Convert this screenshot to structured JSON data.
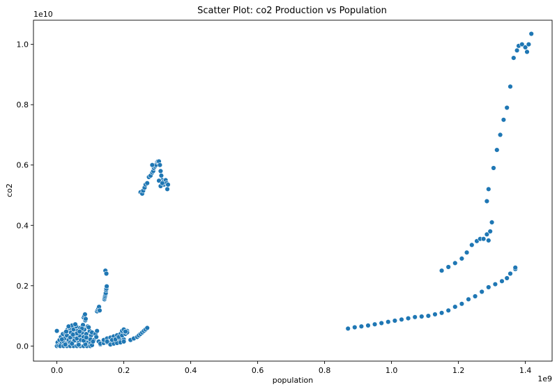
{
  "chart_data": {
    "type": "scatter",
    "title": "Scatter Plot: co2 Production vs Population",
    "xlabel": "population",
    "ylabel": "co2",
    "x_offset_label": "1e9",
    "y_offset_label": "1e10",
    "xlim": [
      -0.07,
      1.48
    ],
    "ylim": [
      -0.05,
      1.08
    ],
    "x_ticks": [
      {
        "value": 0.0,
        "label": "0.0"
      },
      {
        "value": 0.2,
        "label": "0.2"
      },
      {
        "value": 0.4,
        "label": "0.4"
      },
      {
        "value": 0.6,
        "label": "0.6"
      },
      {
        "value": 0.8,
        "label": "0.8"
      },
      {
        "value": 1.0,
        "label": "1.0"
      },
      {
        "value": 1.2,
        "label": "1.2"
      },
      {
        "value": 1.4,
        "label": "1.4"
      }
    ],
    "y_ticks": [
      {
        "value": 0.0,
        "label": "0.0"
      },
      {
        "value": 0.2,
        "label": "0.2"
      },
      {
        "value": 0.4,
        "label": "0.4"
      },
      {
        "value": 0.6,
        "label": "0.6"
      },
      {
        "value": 0.8,
        "label": "0.8"
      },
      {
        "value": 1.0,
        "label": "1.0"
      }
    ],
    "grid": false,
    "legend": "none",
    "marker_color": "#1f77b4",
    "marker_edge_color": "#ffffff",
    "series": [
      {
        "points": [
          [
            0.0,
            0.0
          ],
          [
            0.0,
            0.05
          ],
          [
            0.002,
            0.012
          ],
          [
            0.005,
            0.002
          ],
          [
            0.008,
            0.02
          ],
          [
            0.01,
            0.005
          ],
          [
            0.012,
            0.03
          ],
          [
            0.015,
            0.01
          ],
          [
            0.018,
            0.04
          ],
          [
            0.02,
            0.015
          ],
          [
            0.022,
            0.025
          ],
          [
            0.025,
            0.045
          ],
          [
            0.028,
            0.008
          ],
          [
            0.03,
            0.035
          ],
          [
            0.032,
            0.055
          ],
          [
            0.035,
            0.02
          ],
          [
            0.038,
            0.06
          ],
          [
            0.04,
            0.012
          ],
          [
            0.042,
            0.045
          ],
          [
            0.045,
            0.068
          ],
          [
            0.048,
            0.03
          ],
          [
            0.05,
            0.055
          ],
          [
            0.052,
            0.018
          ],
          [
            0.055,
            0.04
          ],
          [
            0.058,
            0.065
          ],
          [
            0.06,
            0.025
          ],
          [
            0.062,
            0.05
          ],
          [
            0.065,
            0.01
          ],
          [
            0.068,
            0.035
          ],
          [
            0.07,
            0.06
          ],
          [
            0.072,
            0.02
          ],
          [
            0.075,
            0.045
          ],
          [
            0.078,
            0.07
          ],
          [
            0.08,
            0.03
          ],
          [
            0.082,
            0.055
          ],
          [
            0.085,
            0.085
          ],
          [
            0.088,
            0.04
          ],
          [
            0.09,
            0.012
          ],
          [
            0.092,
            0.065
          ],
          [
            0.095,
            0.025
          ],
          [
            0.098,
            0.05
          ],
          [
            0.1,
            0.008
          ],
          [
            0.102,
            0.035
          ],
          [
            0.105,
            0.045
          ],
          [
            0.11,
            0.02
          ],
          [
            0.115,
            0.04
          ],
          [
            0.12,
            0.05
          ],
          [
            0.125,
            0.015
          ],
          [
            0.13,
            0.005
          ],
          [
            0.135,
            0.01
          ],
          [
            0.01,
            0.0
          ],
          [
            0.02,
            0.0
          ],
          [
            0.03,
            0.0
          ],
          [
            0.04,
            0.0
          ],
          [
            0.05,
            0.0
          ],
          [
            0.06,
            0.0
          ],
          [
            0.07,
            0.0
          ],
          [
            0.08,
            0.0
          ],
          [
            0.09,
            0.0
          ],
          [
            0.1,
            0.0
          ],
          [
            0.025,
            0.005
          ],
          [
            0.045,
            0.008
          ],
          [
            0.065,
            0.004
          ],
          [
            0.085,
            0.006
          ],
          [
            0.105,
            0.003
          ],
          [
            0.035,
            0.065
          ],
          [
            0.055,
            0.072
          ],
          [
            0.075,
            0.058
          ],
          [
            0.095,
            0.062
          ],
          [
            0.04,
            0.028
          ],
          [
            0.06,
            0.042
          ],
          [
            0.08,
            0.018
          ],
          [
            0.1,
            0.022
          ],
          [
            0.015,
            0.022
          ],
          [
            0.028,
            0.048
          ],
          [
            0.048,
            0.038
          ],
          [
            0.068,
            0.048
          ],
          [
            0.088,
            0.028
          ],
          [
            0.108,
            0.015
          ],
          [
            0.118,
            0.03
          ],
          [
            0.08,
            0.095
          ],
          [
            0.082,
            0.1
          ],
          [
            0.084,
            0.105
          ],
          [
            0.086,
            0.09
          ],
          [
            0.12,
            0.115
          ],
          [
            0.122,
            0.12
          ],
          [
            0.124,
            0.125
          ],
          [
            0.126,
            0.13
          ],
          [
            0.128,
            0.118
          ],
          [
            0.142,
            0.155
          ],
          [
            0.143,
            0.16
          ],
          [
            0.144,
            0.165
          ],
          [
            0.145,
            0.17
          ],
          [
            0.146,
            0.175
          ],
          [
            0.147,
            0.185
          ],
          [
            0.148,
            0.19
          ],
          [
            0.149,
            0.198
          ],
          [
            0.145,
            0.25
          ],
          [
            0.148,
            0.24
          ],
          [
            0.13,
            0.008
          ],
          [
            0.14,
            0.01
          ],
          [
            0.15,
            0.012
          ],
          [
            0.16,
            0.014
          ],
          [
            0.17,
            0.016
          ],
          [
            0.18,
            0.018
          ],
          [
            0.19,
            0.02
          ],
          [
            0.2,
            0.022
          ],
          [
            0.14,
            0.02
          ],
          [
            0.15,
            0.025
          ],
          [
            0.16,
            0.028
          ],
          [
            0.17,
            0.032
          ],
          [
            0.18,
            0.036
          ],
          [
            0.19,
            0.04
          ],
          [
            0.2,
            0.045
          ],
          [
            0.21,
            0.05
          ],
          [
            0.16,
            0.005
          ],
          [
            0.17,
            0.008
          ],
          [
            0.18,
            0.01
          ],
          [
            0.19,
            0.012
          ],
          [
            0.2,
            0.015
          ],
          [
            0.22,
            0.02
          ],
          [
            0.23,
            0.025
          ],
          [
            0.24,
            0.03
          ],
          [
            0.245,
            0.035
          ],
          [
            0.25,
            0.04
          ],
          [
            0.255,
            0.045
          ],
          [
            0.26,
            0.05
          ],
          [
            0.265,
            0.055
          ],
          [
            0.27,
            0.06
          ],
          [
            0.15,
            0.015
          ],
          [
            0.165,
            0.02
          ],
          [
            0.175,
            0.022
          ],
          [
            0.185,
            0.03
          ],
          [
            0.195,
            0.035
          ],
          [
            0.205,
            0.04
          ],
          [
            0.21,
            0.045
          ],
          [
            0.195,
            0.05
          ],
          [
            0.2,
            0.055
          ],
          [
            0.205,
            0.048
          ],
          [
            0.25,
            0.51
          ],
          [
            0.255,
            0.505
          ],
          [
            0.258,
            0.515
          ],
          [
            0.262,
            0.525
          ],
          [
            0.265,
            0.535
          ],
          [
            0.27,
            0.54
          ],
          [
            0.275,
            0.56
          ],
          [
            0.28,
            0.565
          ],
          [
            0.285,
            0.575
          ],
          [
            0.288,
            0.58
          ],
          [
            0.29,
            0.59
          ],
          [
            0.293,
            0.595
          ],
          [
            0.296,
            0.6
          ],
          [
            0.3,
            0.61
          ],
          [
            0.302,
            0.612
          ],
          [
            0.305,
            0.612
          ],
          [
            0.308,
            0.6
          ],
          [
            0.31,
            0.58
          ],
          [
            0.312,
            0.565
          ],
          [
            0.315,
            0.55
          ],
          [
            0.318,
            0.545
          ],
          [
            0.32,
            0.535
          ],
          [
            0.325,
            0.55
          ],
          [
            0.328,
            0.54
          ],
          [
            0.33,
            0.52
          ],
          [
            0.332,
            0.535
          ],
          [
            0.305,
            0.548
          ],
          [
            0.31,
            0.53
          ],
          [
            0.315,
            0.54
          ],
          [
            0.285,
            0.6
          ],
          [
            0.87,
            0.058
          ],
          [
            0.89,
            0.062
          ],
          [
            0.91,
            0.065
          ],
          [
            0.93,
            0.068
          ],
          [
            0.95,
            0.072
          ],
          [
            0.97,
            0.076
          ],
          [
            0.99,
            0.08
          ],
          [
            1.01,
            0.084
          ],
          [
            1.03,
            0.088
          ],
          [
            1.05,
            0.092
          ],
          [
            1.07,
            0.096
          ],
          [
            1.09,
            0.098
          ],
          [
            1.11,
            0.1
          ],
          [
            1.13,
            0.105
          ],
          [
            1.15,
            0.11
          ],
          [
            1.17,
            0.118
          ],
          [
            1.19,
            0.13
          ],
          [
            1.21,
            0.14
          ],
          [
            1.23,
            0.155
          ],
          [
            1.25,
            0.165
          ],
          [
            1.27,
            0.18
          ],
          [
            1.29,
            0.195
          ],
          [
            1.31,
            0.205
          ],
          [
            1.33,
            0.215
          ],
          [
            1.345,
            0.225
          ],
          [
            1.355,
            0.24
          ],
          [
            1.37,
            0.255
          ],
          [
            1.37,
            0.26
          ],
          [
            1.15,
            0.25
          ],
          [
            1.17,
            0.262
          ],
          [
            1.19,
            0.275
          ],
          [
            1.21,
            0.29
          ],
          [
            1.225,
            0.31
          ],
          [
            1.24,
            0.335
          ],
          [
            1.255,
            0.348
          ],
          [
            1.265,
            0.355
          ],
          [
            1.275,
            0.355
          ],
          [
            1.285,
            0.37
          ],
          [
            1.29,
            0.35
          ],
          [
            1.295,
            0.38
          ],
          [
            1.3,
            0.41
          ],
          [
            1.285,
            0.48
          ],
          [
            1.29,
            0.52
          ],
          [
            1.305,
            0.59
          ],
          [
            1.315,
            0.65
          ],
          [
            1.325,
            0.7
          ],
          [
            1.335,
            0.75
          ],
          [
            1.345,
            0.79
          ],
          [
            1.355,
            0.86
          ],
          [
            1.365,
            0.955
          ],
          [
            1.375,
            0.98
          ],
          [
            1.38,
            0.995
          ],
          [
            1.39,
            1.0
          ],
          [
            1.4,
            0.99
          ],
          [
            1.405,
            0.975
          ],
          [
            1.41,
            1.0
          ],
          [
            1.418,
            1.035
          ]
        ]
      }
    ]
  }
}
